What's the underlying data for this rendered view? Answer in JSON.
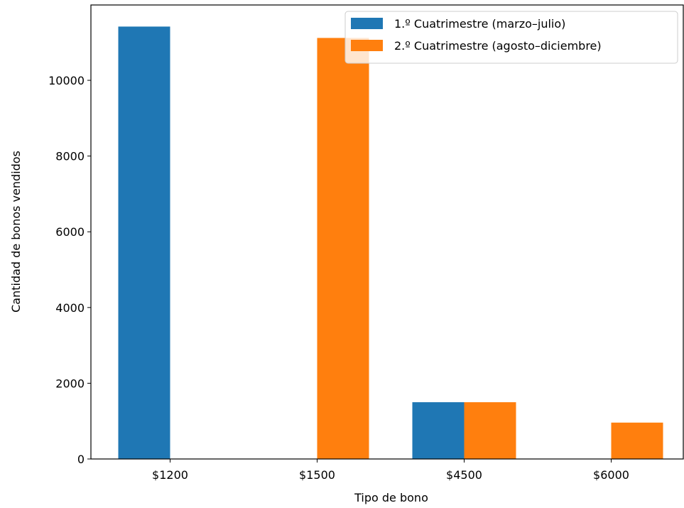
{
  "chart_data": {
    "type": "bar",
    "title": "",
    "xlabel": "Tipo de bono",
    "ylabel": "Cantidad de bonos vendidos",
    "categories": [
      "$1200",
      "$1500",
      "$4500",
      "$6000"
    ],
    "series": [
      {
        "name": "1.º Cuatrimestre (marzo–julio)",
        "color": "#1f77b4",
        "values": [
          11420,
          0,
          1500,
          0
        ]
      },
      {
        "name": "2.º Cuatrimestre (agosto–diciembre)",
        "color": "#ff7f0e",
        "values": [
          0,
          11120,
          1500,
          960
        ]
      }
    ],
    "ylim": [
      0,
      11990
    ],
    "yticks": [
      0,
      2000,
      4000,
      6000,
      8000,
      10000
    ],
    "grid": false,
    "legend_position": "top-right"
  }
}
